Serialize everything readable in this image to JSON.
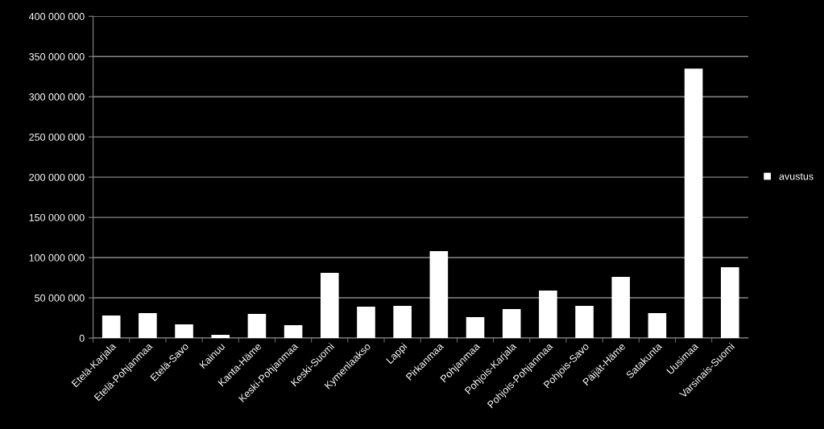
{
  "chart_data": {
    "type": "bar",
    "categories": [
      "Etelä-Karjala",
      "Etelä-Pohjanmaa",
      "Etelä-Savo",
      "Kainuu",
      "Kanta-Häme",
      "Keski-Pohjanmaa",
      "Keski-Suomi",
      "Kymenlaakso",
      "Lappi",
      "Pirkanmaa",
      "Pohjanmaa",
      "Pohjois-Karjala",
      "Pohjois-Pohjanmaa",
      "Pohjois-Savo",
      "Päijät-Häme",
      "Satakunta",
      "Uusimaa",
      "Varsinais-Suomi"
    ],
    "series": [
      {
        "name": "avustus",
        "color": "#ffffff",
        "values": [
          28000000,
          31000000,
          17000000,
          4000000,
          30000000,
          16000000,
          81000000,
          39000000,
          40000000,
          108000000,
          26000000,
          36000000,
          59000000,
          40000000,
          76000000,
          31000000,
          335000000,
          88000000
        ]
      }
    ],
    "ylim": [
      0,
      400000000
    ],
    "yticks": [
      {
        "value": 0,
        "label": "0"
      },
      {
        "value": 50000000,
        "label": "50 000 000"
      },
      {
        "value": 100000000,
        "label": "100 000 000"
      },
      {
        "value": 150000000,
        "label": "150 000 000"
      },
      {
        "value": 200000000,
        "label": "200 000 000"
      },
      {
        "value": 250000000,
        "label": "250 000 000"
      },
      {
        "value": 300000000,
        "label": "300 000 000"
      },
      {
        "value": 350000000,
        "label": "350 000 000"
      },
      {
        "value": 400000000,
        "label": "400 000 000"
      }
    ],
    "grid": "y",
    "legend": "right"
  }
}
